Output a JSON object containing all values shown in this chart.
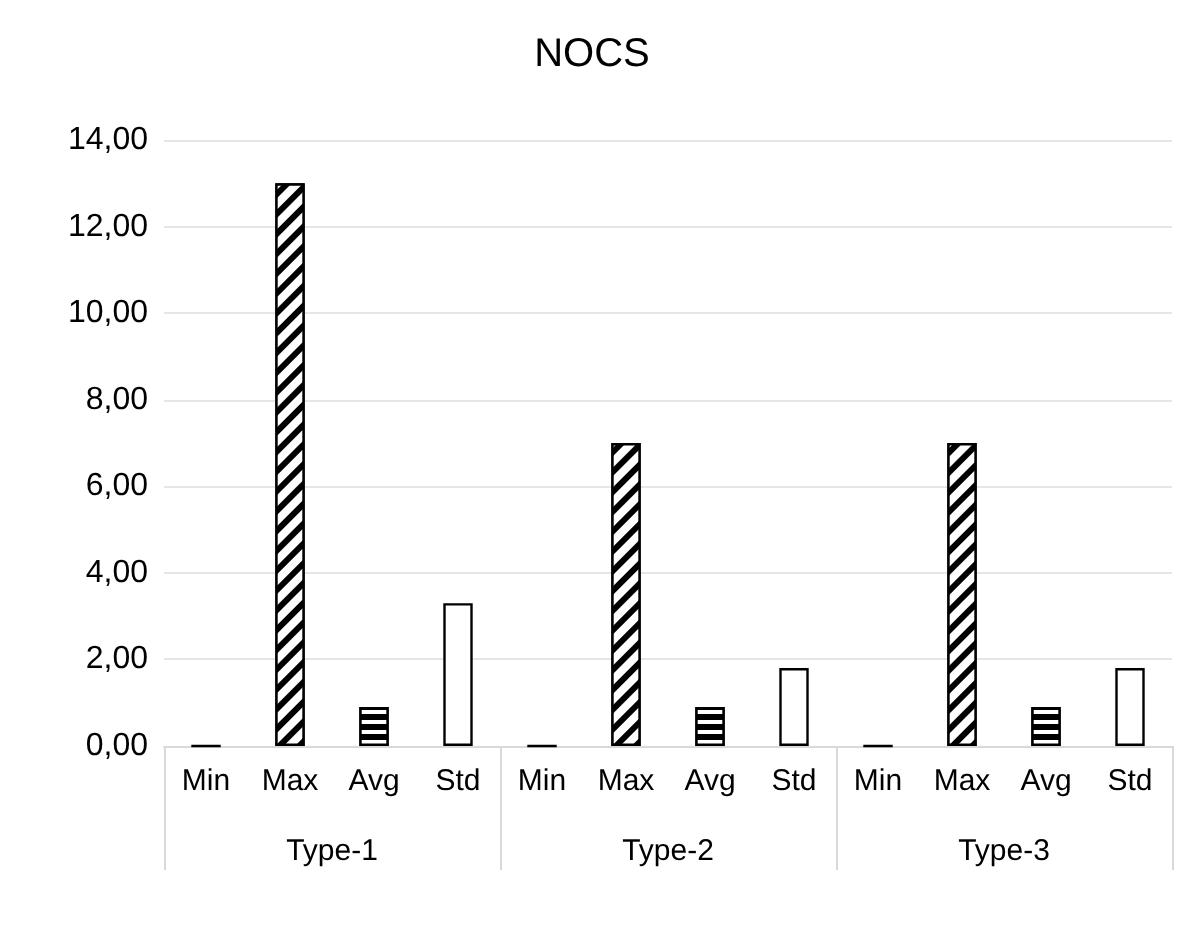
{
  "chart_data": {
    "type": "bar",
    "title": "NOCS",
    "categories": [
      "Type-1",
      "Type-2",
      "Type-3"
    ],
    "series": [
      {
        "name": "Min",
        "color": "#000000",
        "values": [
          0,
          0,
          0
        ]
      },
      {
        "name": "Max",
        "color": "#000000",
        "values": [
          13,
          7,
          7
        ]
      },
      {
        "name": "Avg",
        "color": "#000000",
        "values": [
          0.9,
          0.9,
          0.9
        ]
      },
      {
        "name": "Std",
        "color": "#ffffff",
        "values": [
          3.3,
          1.8,
          1.8
        ]
      }
    ],
    "ylim": [
      0,
      14
    ],
    "yticks": [
      {
        "value": 0,
        "label": "0,00"
      },
      {
        "value": 2,
        "label": "2,00"
      },
      {
        "value": 4,
        "label": "4,00"
      },
      {
        "value": 6,
        "label": "6,00"
      },
      {
        "value": 8,
        "label": "8,00"
      },
      {
        "value": 10,
        "label": "10,00"
      },
      {
        "value": 12,
        "label": "12,00"
      },
      {
        "value": 14,
        "label": "14,00"
      }
    ],
    "grid": "y",
    "legend": false
  }
}
